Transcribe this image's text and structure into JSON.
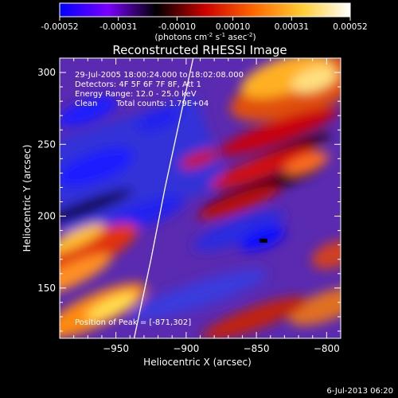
{
  "title": "Reconstructed RHESSI Image",
  "footer_date": "6-Jul-2013 06:20",
  "colorbar": {
    "label_main": "(photons cm",
    "label_sup1": "-2",
    "label_mid": " s",
    "label_sup2": "-1",
    "label_end": " asec",
    "label_sup3": "-2",
    "label_close": ")",
    "range": [
      -0.00052,
      0.00052
    ],
    "ticks": [
      "-0.00052",
      "-0.00031",
      "-0.00010",
      "0.00010",
      "0.00031",
      "0.00052"
    ],
    "colors": [
      "#0000ff",
      "#7a00ff",
      "#000000",
      "#cc0000",
      "#ff6600",
      "#ffcc33",
      "#ffffff"
    ]
  },
  "info": {
    "line1": "29-Jul-2005 18:00:24.000 to 18:02:08.000",
    "line2": "Detectors: 4F 5F 6F 7F 8F, Att 1",
    "line3": "Energy Range: 12.0 - 25.0 keV",
    "line4_a": "Clean",
    "line4_b": "Total counts: 1.79E+04",
    "peak": "Position of Peak = [-871,302]"
  },
  "chart_data": {
    "type": "heatmap",
    "title": "Reconstructed RHESSI Image",
    "xlabel": "Heliocentric X (arcsec)",
    "ylabel": "Heliocentric Y (arcsec)",
    "xlim": [
      -990,
      -790
    ],
    "ylim": [
      115,
      310
    ],
    "xticks": [
      -950,
      -900,
      -850,
      -800
    ],
    "yticks": [
      150,
      200,
      250,
      300
    ],
    "peak": [
      -871,
      302
    ],
    "minimum_marker": [
      -845,
      183
    ],
    "limb_curve": [
      [
        -937,
        115
      ],
      [
        -925,
        170
      ],
      [
        -915,
        220
      ],
      [
        -905,
        265
      ],
      [
        -895,
        310
      ]
    ]
  }
}
